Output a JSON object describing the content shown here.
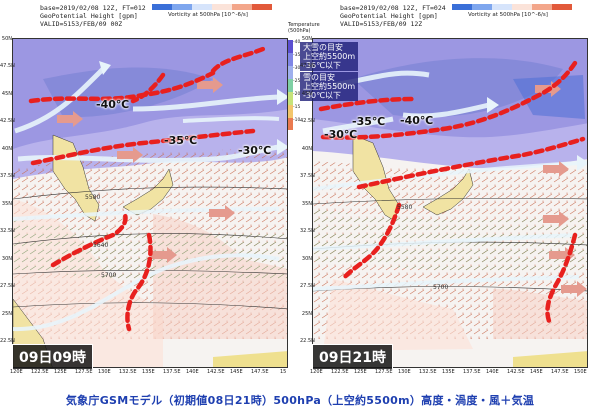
{
  "left": {
    "meta": [
      "base=2019/02/08 12Z, FT=012",
      "GeoPotential Height [gpm]",
      "VALID=5153/FEB/09 00Z"
    ],
    "cbar_label": "Vorticity at 500hPa [10^-6/s]",
    "temps": [
      "-40℃",
      "-35℃",
      "-30℃"
    ],
    "date": "09日09時",
    "contours": [
      "5580",
      "5640",
      "5700"
    ],
    "lat": [
      "50N",
      "47.5N",
      "45N",
      "42.5N",
      "40N",
      "37.5N",
      "35N",
      "32.5N",
      "30N",
      "27.5N",
      "25N",
      "22.5N"
    ],
    "lon": [
      "120E",
      "122.5E",
      "125E",
      "127.5E",
      "130E",
      "132.5E",
      "135E",
      "137.5E",
      "140E",
      "142.5E",
      "145E",
      "147.5E",
      "15"
    ]
  },
  "right": {
    "meta": [
      "base=2019/02/08 12Z, FT=024",
      "GeoPotential Height [gpm]",
      "VALID=5153/FEB/09 12Z"
    ],
    "cbar_label": "Vorticity at 500hPa [10^-6/s]",
    "temps": [
      "-35℃",
      "-40℃",
      "-30℃"
    ],
    "notes": [
      "大雪の目安\n上空約5500m\n-36℃以下",
      "雪の目安\n上空約5500m\n-30℃以下"
    ],
    "date": "09日21時",
    "contours": [
      "5580",
      "5700"
    ],
    "lat": [
      "50N",
      "47.5N",
      "45N",
      "42.5N",
      "40N",
      "37.5N",
      "35N",
      "32.5N",
      "30N",
      "27.5N",
      "25N",
      "22.5N"
    ],
    "lon": [
      "120E",
      "122.5E",
      "125E",
      "127.5E",
      "130E",
      "132.5E",
      "135E",
      "137.5E",
      "140E",
      "142.5E",
      "145E",
      "147.5E",
      "150E"
    ],
    "legend_title": "Temperature\n(500hPa)",
    "legend_values": [
      "-40",
      "-35",
      "-30",
      "-25",
      "-20",
      "-15",
      "-10"
    ]
  },
  "caption": "気象庁GSMモデル（初期値08日21時）500hPa（上空約5500m）高度・渦度・風＋気温",
  "colors": {
    "cold_front": "#e8201e",
    "jet_arrow": "#e8f4fb",
    "trough_arrow": "#e59a8e",
    "cold_air": "#8f8fe0",
    "vorticity_pos": "#f2c3b3"
  }
}
